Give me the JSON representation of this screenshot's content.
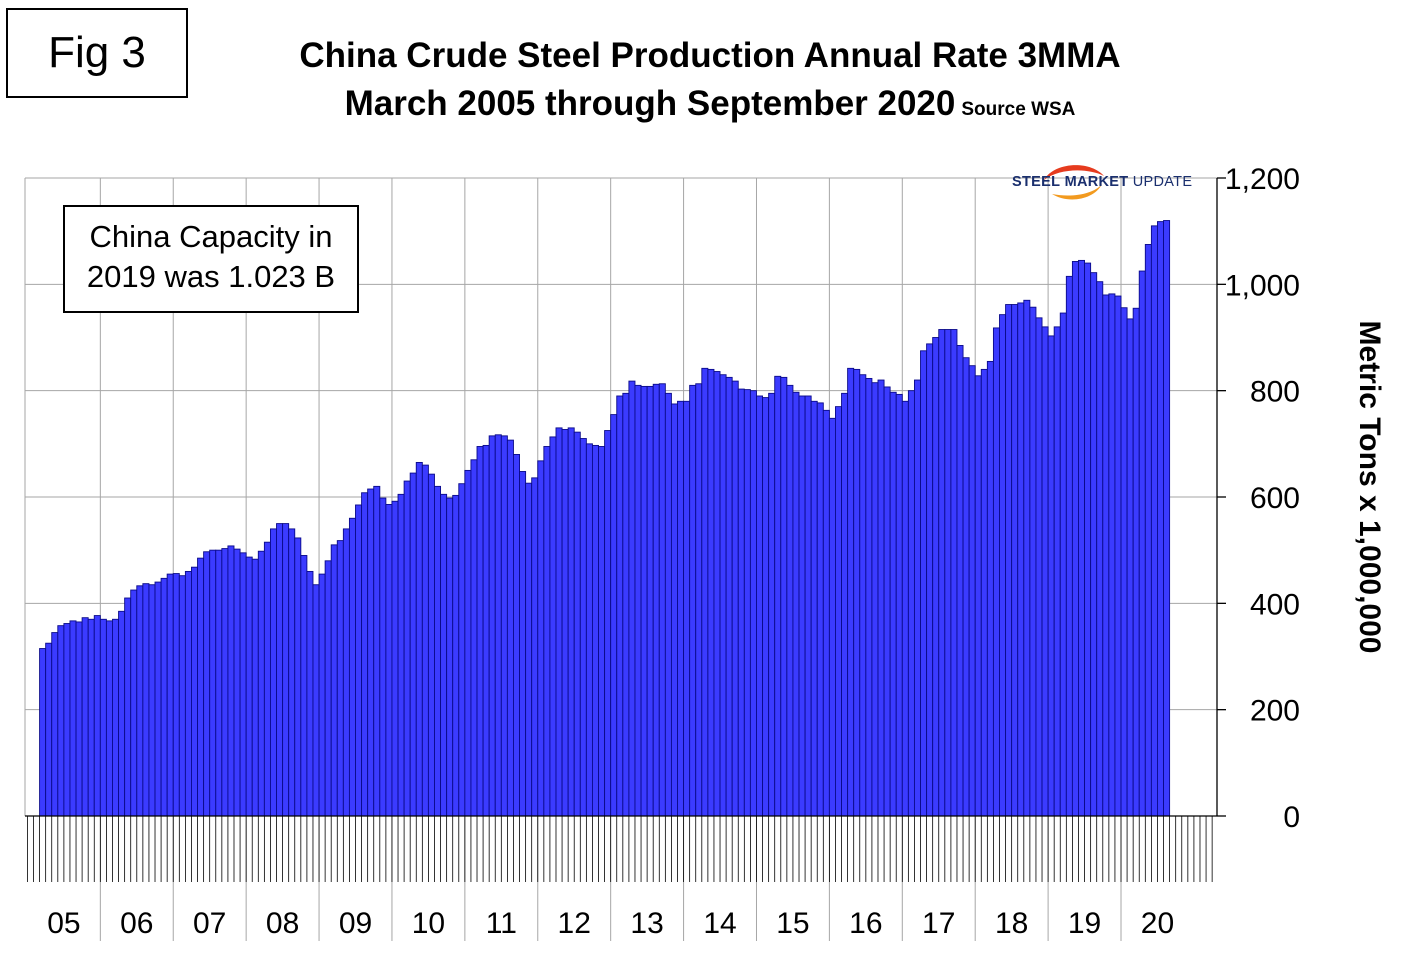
{
  "figure_label": "Fig 3",
  "title_line1": "China Crude Steel Production Annual Rate 3MMA",
  "title_line2": "March 2005 through September 2020",
  "source_note": "Source WSA",
  "annotation": {
    "line1": "China Capacity in",
    "line2": "2019 was 1.023 B"
  },
  "logo": {
    "word1": "STEEL",
    "word2": "MARKET",
    "word3": "UPDATE",
    "accent_colors": [
      "#e63b1e",
      "#f29a1f"
    ]
  },
  "colors": {
    "bar_fill": "#3b3bff",
    "bar_stroke": "#0a0a8a",
    "grid": "#a6a6a6"
  },
  "chart_data": {
    "type": "bar",
    "ylabel": "Metric Tons x 1,000,000",
    "ylim": [
      0,
      1200
    ],
    "y_ticks": [
      0,
      200,
      400,
      600,
      800,
      1000,
      1200
    ],
    "y_tick_labels": [
      "0",
      "200",
      "400",
      "600",
      "800",
      "1,000",
      "1,200"
    ],
    "y_axis_position": "right",
    "grid": true,
    "x_start": "2005-03",
    "x_end": "2020-09",
    "year_labels": [
      "05",
      "06",
      "07",
      "08",
      "09",
      "10",
      "11",
      "12",
      "13",
      "14",
      "15",
      "16",
      "17",
      "18",
      "19",
      "20"
    ],
    "values": [
      315,
      325,
      345,
      358,
      362,
      367,
      365,
      373,
      370,
      377,
      370,
      367,
      370,
      385,
      410,
      425,
      433,
      437,
      435,
      440,
      447,
      455,
      456,
      452,
      460,
      468,
      485,
      497,
      500,
      500,
      503,
      508,
      502,
      495,
      487,
      483,
      498,
      515,
      540,
      550,
      550,
      540,
      523,
      490,
      460,
      435,
      455,
      480,
      510,
      518,
      540,
      560,
      585,
      608,
      615,
      620,
      598,
      586,
      592,
      605,
      630,
      645,
      665,
      660,
      643,
      620,
      605,
      598,
      603,
      625,
      650,
      670,
      695,
      697,
      715,
      717,
      715,
      707,
      680,
      648,
      626,
      636,
      668,
      695,
      713,
      730,
      727,
      730,
      722,
      710,
      700,
      697,
      695,
      725,
      755,
      790,
      795,
      818,
      810,
      808,
      808,
      812,
      813,
      795,
      775,
      780,
      780,
      810,
      813,
      842,
      840,
      836,
      830,
      825,
      818,
      803,
      802,
      800,
      790,
      787,
      795,
      827,
      825,
      810,
      797,
      790,
      790,
      780,
      777,
      763,
      748,
      770,
      795,
      842,
      840,
      830,
      823,
      815,
      820,
      807,
      797,
      793,
      780,
      800,
      820,
      875,
      888,
      900,
      915,
      915,
      915,
      885,
      862,
      847,
      828,
      840,
      855,
      918,
      943,
      962,
      962,
      965,
      970,
      957,
      937,
      920,
      903,
      920,
      946,
      1015,
      1043,
      1045,
      1040,
      1022,
      1005,
      980,
      982,
      978,
      956,
      935,
      955,
      1025,
      1075,
      1110,
      1118,
      1120
    ]
  }
}
